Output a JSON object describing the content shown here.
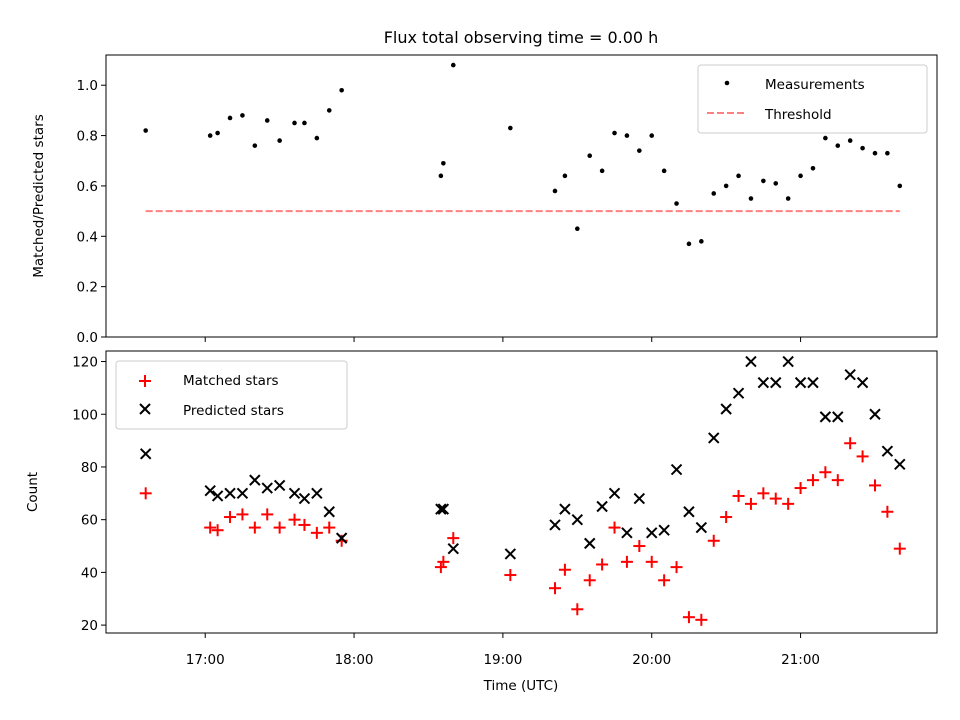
{
  "figure": {
    "title": "Flux total observing time = 0.00 h",
    "xlabel": "Time (UTC)"
  },
  "chart_data": [
    {
      "type": "scatter",
      "ylabel": "Matched/Predicted stars",
      "xlim": [
        "16:20",
        "21:55"
      ],
      "ylim": [
        0,
        1.12
      ],
      "yticks": [
        0.0,
        0.2,
        0.4,
        0.6,
        0.8,
        1.0
      ],
      "ytick_labels": [
        "0.0",
        "0.2",
        "0.4",
        "0.6",
        "0.8",
        "1.0"
      ],
      "legend": {
        "placement": "top-right",
        "entries": [
          "Measurements",
          "Threshold"
        ]
      },
      "series": [
        {
          "name": "Measurements",
          "marker": "dot",
          "color": "#000000",
          "x": [
            "16:36",
            "17:02",
            "17:05",
            "17:10",
            "17:15",
            "17:20",
            "17:25",
            "17:30",
            "17:36",
            "17:40",
            "17:45",
            "17:50",
            "17:55",
            "18:35",
            "18:36",
            "18:40",
            "19:03",
            "19:21",
            "19:25",
            "19:30",
            "19:35",
            "19:40",
            "19:45",
            "19:50",
            "19:55",
            "20:00",
            "20:05",
            "20:10",
            "20:15",
            "20:20",
            "20:25",
            "20:30",
            "20:35",
            "20:40",
            "20:45",
            "20:50",
            "20:55",
            "21:00",
            "21:05",
            "21:10",
            "21:15",
            "21:20",
            "21:25",
            "21:30",
            "21:35",
            "21:40"
          ],
          "y": [
            0.82,
            0.8,
            0.81,
            0.87,
            0.88,
            0.76,
            0.86,
            0.78,
            0.85,
            0.85,
            0.79,
            0.9,
            0.98,
            0.64,
            0.69,
            1.08,
            0.83,
            0.58,
            0.64,
            0.43,
            0.72,
            0.66,
            0.81,
            0.8,
            0.74,
            0.8,
            0.66,
            0.53,
            0.37,
            0.38,
            0.57,
            0.6,
            0.64,
            0.55,
            0.62,
            0.61,
            0.55,
            0.64,
            0.67,
            0.79,
            0.76,
            0.78,
            0.75,
            0.73,
            0.73,
            0.6
          ]
        },
        {
          "name": "Threshold",
          "style": "dashed",
          "color": "#ff8080",
          "x": [
            "16:36",
            "21:40"
          ],
          "y": [
            0.5,
            0.5
          ]
        }
      ]
    },
    {
      "type": "scatter",
      "ylabel": "Count",
      "xlim": [
        "16:20",
        "21:55"
      ],
      "ylim": [
        17,
        124
      ],
      "yticks": [
        20,
        40,
        60,
        80,
        100,
        120
      ],
      "ytick_labels": [
        "20",
        "40",
        "60",
        "80",
        "100",
        "120"
      ],
      "xtick_labels": [
        "17:00",
        "18:00",
        "19:00",
        "20:00",
        "21:00"
      ],
      "legend": {
        "placement": "top-left",
        "entries": [
          "Matched stars",
          "Predicted stars"
        ]
      },
      "series": [
        {
          "name": "Matched stars",
          "marker": "plus",
          "color": "#ff0000",
          "x": [
            "16:36",
            "17:02",
            "17:05",
            "17:10",
            "17:15",
            "17:20",
            "17:25",
            "17:30",
            "17:36",
            "17:40",
            "17:45",
            "17:50",
            "17:55",
            "18:35",
            "18:36",
            "18:40",
            "19:03",
            "19:21",
            "19:25",
            "19:30",
            "19:35",
            "19:40",
            "19:45",
            "19:50",
            "19:55",
            "20:00",
            "20:05",
            "20:10",
            "20:15",
            "20:20",
            "20:25",
            "20:30",
            "20:35",
            "20:40",
            "20:45",
            "20:50",
            "20:55",
            "21:00",
            "21:05",
            "21:10",
            "21:15",
            "21:20",
            "21:25",
            "21:30",
            "21:35",
            "21:40"
          ],
          "y": [
            70,
            57,
            56,
            61,
            62,
            57,
            62,
            57,
            60,
            58,
            55,
            57,
            52,
            42,
            44,
            53,
            39,
            34,
            41,
            26,
            37,
            43,
            57,
            44,
            50,
            44,
            37,
            42,
            23,
            22,
            52,
            61,
            69,
            66,
            70,
            68,
            66,
            72,
            75,
            78,
            75,
            89,
            84,
            73,
            63,
            49
          ]
        },
        {
          "name": "Predicted stars",
          "marker": "x",
          "color": "#000000",
          "x": [
            "16:36",
            "17:02",
            "17:05",
            "17:10",
            "17:15",
            "17:20",
            "17:25",
            "17:30",
            "17:36",
            "17:40",
            "17:45",
            "17:50",
            "17:55",
            "18:35",
            "18:36",
            "18:40",
            "19:03",
            "19:21",
            "19:25",
            "19:30",
            "19:35",
            "19:40",
            "19:45",
            "19:50",
            "19:55",
            "20:00",
            "20:05",
            "20:10",
            "20:15",
            "20:20",
            "20:25",
            "20:30",
            "20:35",
            "20:40",
            "20:45",
            "20:50",
            "20:55",
            "21:00",
            "21:05",
            "21:10",
            "21:15",
            "21:20",
            "21:25",
            "21:30",
            "21:35",
            "21:40"
          ],
          "y": [
            85,
            71,
            69,
            70,
            70,
            75,
            72,
            73,
            70,
            68,
            70,
            63,
            53,
            64,
            64,
            49,
            47,
            58,
            64,
            60,
            51,
            65,
            70,
            55,
            68,
            55,
            56,
            79,
            63,
            57,
            91,
            102,
            108,
            120,
            112,
            112,
            120,
            112,
            112,
            99,
            99,
            115,
            112,
            100,
            86,
            81
          ]
        }
      ]
    }
  ]
}
